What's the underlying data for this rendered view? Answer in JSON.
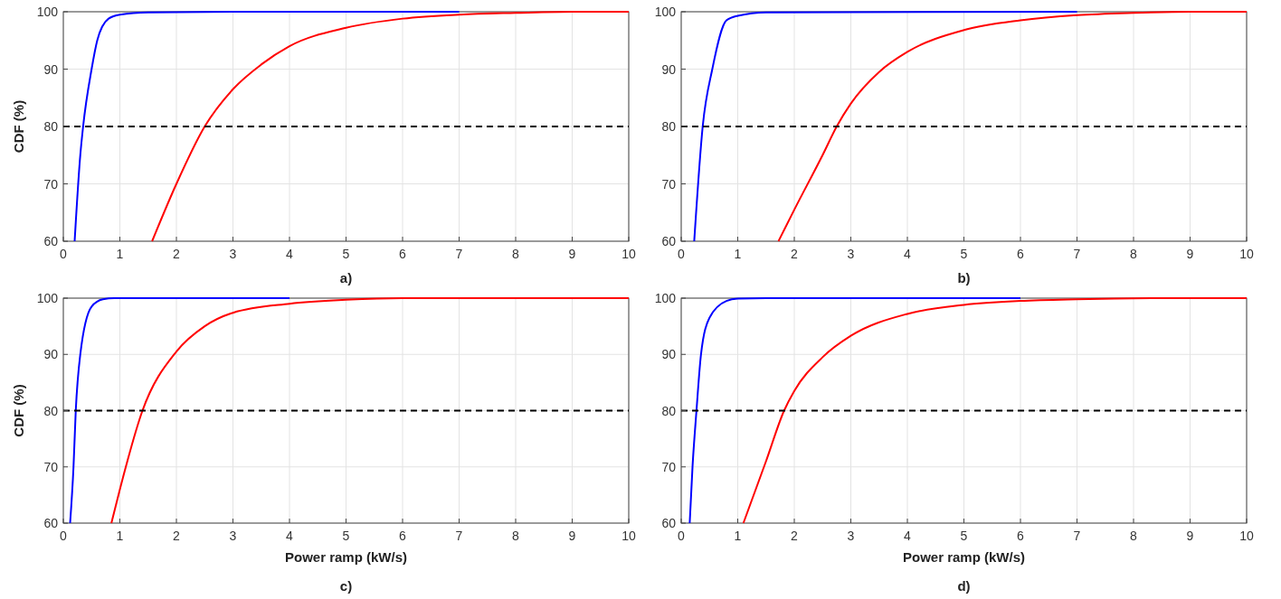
{
  "chart_data": [
    {
      "type": "line",
      "ylabel": "CDF (%)",
      "annotations": [
        "a)"
      ],
      "xlim": [
        0,
        10
      ],
      "ylim": [
        60,
        100
      ],
      "xticks": [
        0,
        1,
        2,
        3,
        4,
        5,
        6,
        7,
        8,
        9,
        10
      ],
      "yticks": [
        60,
        70,
        80,
        90,
        100
      ],
      "grid": true,
      "line_style": "solid",
      "ref_lines": [
        {
          "axis": "y",
          "value": 80,
          "color": "#000000",
          "line_style": "dashed"
        }
      ],
      "series": [
        {
          "color": "#0000ff",
          "x": [
            0.2,
            0.3,
            0.35,
            0.5,
            0.6,
            0.8,
            1,
            1.5,
            3,
            7
          ],
          "values": [
            60,
            75,
            80,
            90,
            95,
            98.8,
            99.5,
            99.9,
            100,
            100
          ]
        },
        {
          "color": "#ff0000",
          "x": [
            1.57,
            2,
            2.5,
            3,
            3.5,
            4,
            5,
            6,
            7,
            8,
            9,
            10
          ],
          "values": [
            60,
            70,
            80,
            86.5,
            90.8,
            94,
            97.2,
            98.8,
            99.5,
            99.8,
            100,
            100
          ]
        }
      ]
    },
    {
      "type": "line",
      "annotations": [
        "b)"
      ],
      "xlim": [
        0,
        10
      ],
      "ylim": [
        60,
        100
      ],
      "xticks": [
        0,
        1,
        2,
        3,
        4,
        5,
        6,
        7,
        8,
        9,
        10
      ],
      "yticks": [
        60,
        70,
        80,
        90,
        100
      ],
      "grid": true,
      "line_style": "solid",
      "ref_lines": [
        {
          "axis": "y",
          "value": 80,
          "color": "#000000",
          "line_style": "dashed"
        }
      ],
      "series": [
        {
          "color": "#0000ff",
          "x": [
            0.23,
            0.38,
            0.55,
            0.8,
            1,
            1.5,
            7
          ],
          "values": [
            60,
            80,
            90,
            98.5,
            99.3,
            99.9,
            100
          ]
        },
        {
          "color": "#ff0000",
          "x": [
            1.72,
            2,
            2.5,
            2.75,
            3,
            3.5,
            4,
            5,
            6,
            7,
            8,
            9,
            10
          ],
          "values": [
            60,
            65.5,
            75,
            80,
            84,
            89.5,
            93,
            96.8,
            98.5,
            99.4,
            99.8,
            100,
            100
          ]
        }
      ]
    },
    {
      "type": "line",
      "ylabel": "CDF (%)",
      "xlabel": "Power ramp (kW/s)",
      "annotations": [
        "c)"
      ],
      "xlim": [
        0,
        10
      ],
      "ylim": [
        60,
        100
      ],
      "xticks": [
        0,
        1,
        2,
        3,
        4,
        5,
        6,
        7,
        8,
        9,
        10
      ],
      "yticks": [
        60,
        70,
        80,
        90,
        100
      ],
      "grid": true,
      "line_style": "solid",
      "ref_lines": [
        {
          "axis": "y",
          "value": 80,
          "color": "#000000",
          "line_style": "dashed"
        }
      ],
      "series": [
        {
          "color": "#0000ff",
          "x": [
            0.12,
            0.18,
            0.22,
            0.3,
            0.5,
            0.7,
            0.9,
            4
          ],
          "values": [
            60,
            70,
            80,
            90,
            98.5,
            99.8,
            100,
            100
          ]
        },
        {
          "color": "#ff0000",
          "x": [
            0.85,
            1,
            1.4,
            2,
            2.5,
            3,
            4,
            5,
            6,
            10
          ],
          "values": [
            60,
            66,
            80,
            90.5,
            95,
            97.4,
            99,
            99.7,
            100,
            100
          ]
        }
      ]
    },
    {
      "type": "line",
      "xlabel": "Power ramp (kW/s)",
      "annotations": [
        "d)"
      ],
      "xlim": [
        0,
        10
      ],
      "ylim": [
        60,
        100
      ],
      "xticks": [
        0,
        1,
        2,
        3,
        4,
        5,
        6,
        7,
        8,
        9,
        10
      ],
      "yticks": [
        60,
        70,
        80,
        90,
        100
      ],
      "grid": true,
      "line_style": "solid",
      "ref_lines": [
        {
          "axis": "y",
          "value": 80,
          "color": "#000000",
          "line_style": "dashed"
        }
      ],
      "series": [
        {
          "color": "#0000ff",
          "x": [
            0.15,
            0.2,
            0.27,
            0.35,
            0.5,
            0.8,
            1,
            1.5,
            6
          ],
          "values": [
            60,
            70,
            80,
            90,
            96.5,
            99.5,
            99.9,
            100,
            100
          ]
        },
        {
          "color": "#ff0000",
          "x": [
            1.1,
            1.5,
            1.82,
            2,
            2.5,
            3,
            4,
            5,
            6,
            7,
            8.7,
            10
          ],
          "values": [
            60,
            71,
            80,
            83.5,
            89.5,
            93.3,
            97.2,
            98.8,
            99.5,
            99.8,
            100,
            100
          ]
        }
      ]
    }
  ]
}
